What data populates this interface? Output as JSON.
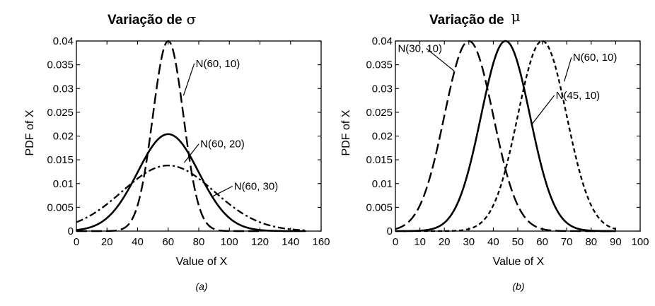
{
  "chart_data": [
    {
      "type": "line",
      "title": "Variação de",
      "title_symbol": "σ",
      "panel_label": "(a)",
      "xlabel": "Value of X",
      "ylabel": "PDF of X",
      "xlim": [
        0,
        160
      ],
      "ylim": [
        0,
        0.04
      ],
      "x_ticks": [
        "0",
        "20",
        "40",
        "60",
        "80",
        "100",
        "120",
        "140",
        "160"
      ],
      "y_ticks": [
        "0",
        "0.005",
        "0.01",
        "0.015",
        "0.02",
        "0.025",
        "0.03",
        "0.035",
        "0.04"
      ],
      "grid": false,
      "series": [
        {
          "name": "N(60, 10)",
          "mean": 60,
          "sd": 10,
          "peak_value": 0.04,
          "x_range": [
            0,
            120
          ],
          "line_style": "long-dash",
          "label_at": [
            70,
            0.0285
          ],
          "label_pos": [
            78,
            0.0345
          ]
        },
        {
          "name": "N(60, 20)",
          "mean": 60,
          "sd": 20,
          "peak_value": 0.0204,
          "x_range": [
            0,
            150
          ],
          "line_style": "solid",
          "label_at": [
            70.5,
            0.0144
          ],
          "label_pos": [
            81,
            0.0176
          ]
        },
        {
          "name": "N(60, 30)",
          "mean": 60,
          "sd": 30,
          "peak_value": 0.0138,
          "x_range": [
            0,
            150
          ],
          "line_style": "dash-dot",
          "label_at": [
            89,
            0.0073
          ],
          "label_pos": [
            103,
            0.0087
          ]
        }
      ]
    },
    {
      "type": "line",
      "title": "Variação de",
      "title_symbol": "μ",
      "panel_label": "(b)",
      "xlabel": "Value of X",
      "ylabel": "PDF of X",
      "xlim": [
        0,
        100
      ],
      "ylim": [
        0,
        0.04
      ],
      "x_ticks": [
        "0",
        "10",
        "20",
        "30",
        "40",
        "50",
        "60",
        "70",
        "80",
        "90",
        "100"
      ],
      "y_ticks": [
        "0",
        "0.005",
        "0.01",
        "0.015",
        "0.02",
        "0.025",
        "0.03",
        "0.035",
        "0.04"
      ],
      "grid": false,
      "series": [
        {
          "name": "N(30, 10)",
          "mean": 30,
          "sd": 10,
          "peak_value": 0.04,
          "x_range": [
            0,
            90
          ],
          "line_style": "long-dash",
          "label_at": [
            24,
            0.0337
          ],
          "label_pos": [
            1,
            0.0377
          ]
        },
        {
          "name": "N(45, 10)",
          "mean": 45,
          "sd": 10,
          "peak_value": 0.04,
          "x_range": [
            0,
            90
          ],
          "line_style": "solid",
          "label_at": [
            55.5,
            0.0223
          ],
          "label_pos": [
            65.5,
            0.0278
          ]
        },
        {
          "name": "N(60, 10)",
          "mean": 60,
          "sd": 10,
          "peak_value": 0.04,
          "x_range": [
            0,
            90
          ],
          "line_style": "short-dash",
          "label_at": [
            69,
            0.0315
          ],
          "label_pos": [
            72.5,
            0.0358
          ]
        }
      ]
    }
  ]
}
